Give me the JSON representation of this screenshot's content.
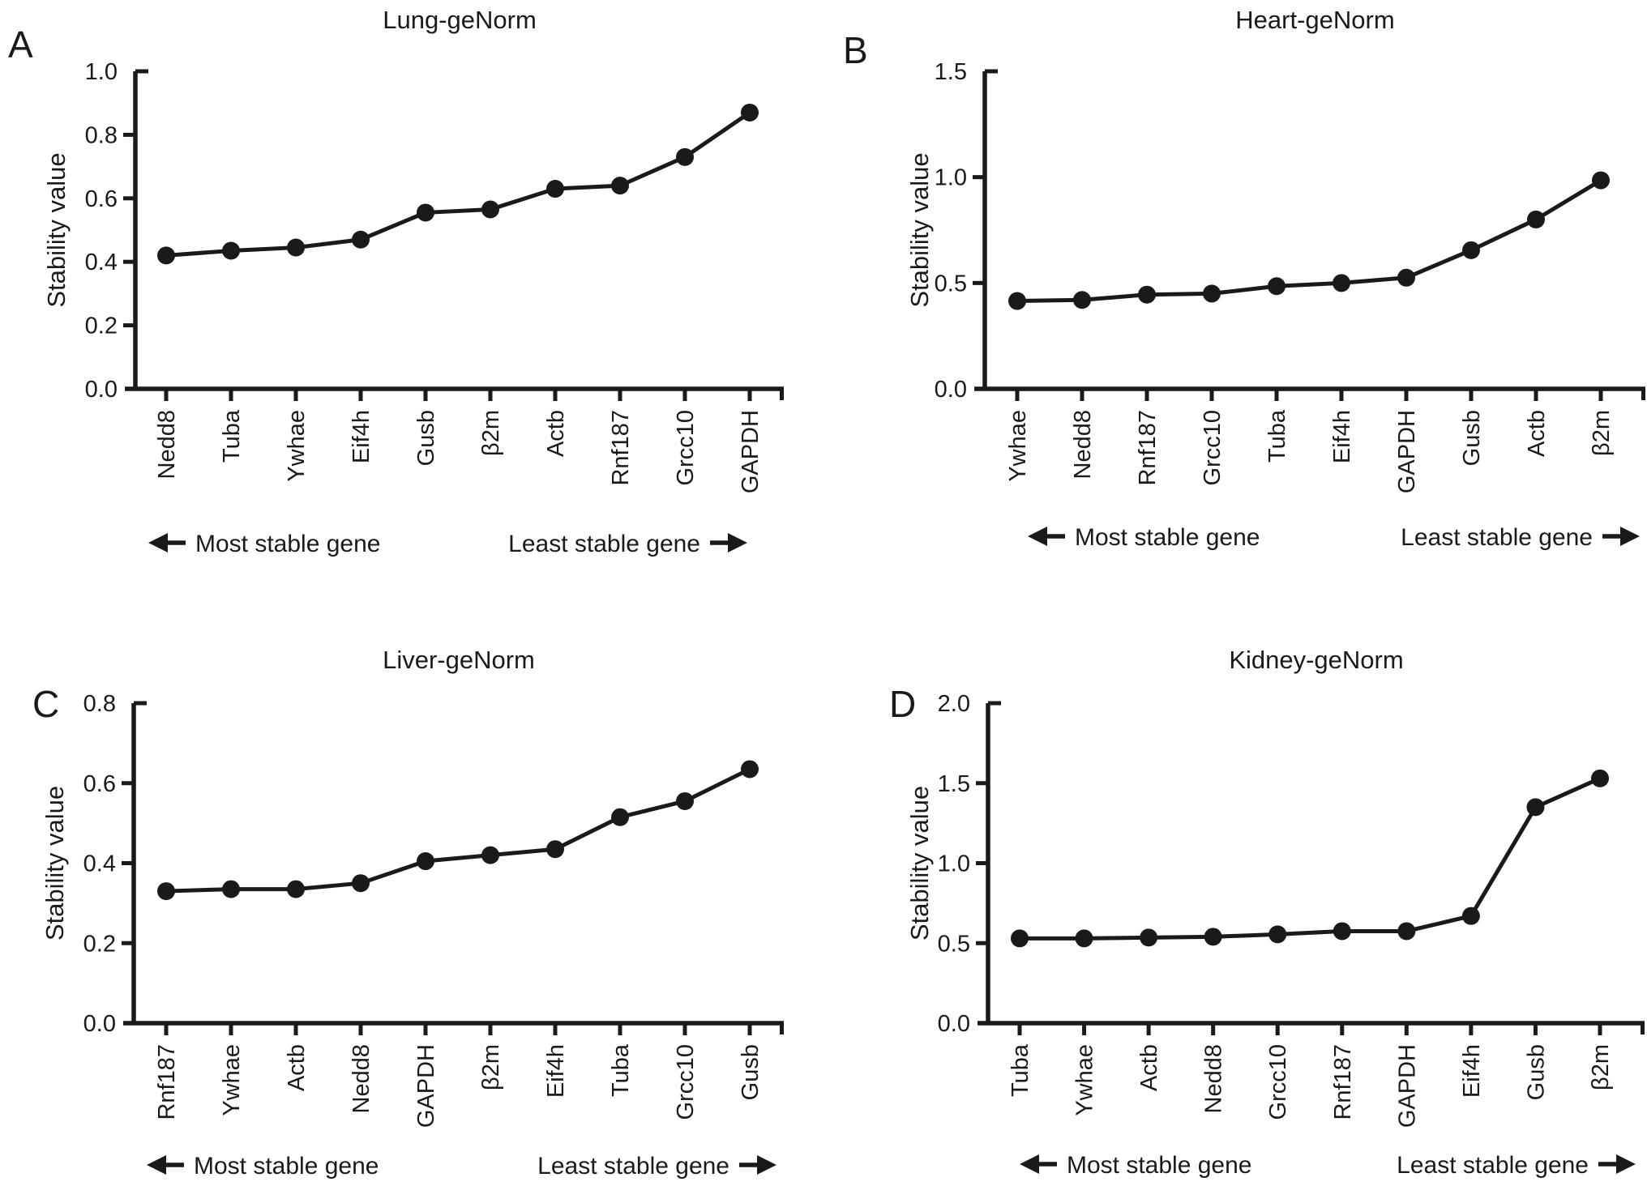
{
  "figure": {
    "background": "#ffffff",
    "ink": "#1a1a1a",
    "description": "geNorm gene expression stability ranking in four tissues"
  },
  "chart_data": [
    {
      "type": "line",
      "panel_letter": "A",
      "title": "Lung-geNorm",
      "ylabel": "Stability value",
      "categories": [
        "Nedd8",
        "Tuba",
        "Ywhae",
        "Eif4h",
        "Gusb",
        "β2m",
        "Actb",
        "Rnf187",
        "Grcc10",
        "GAPDH"
      ],
      "values": [
        0.42,
        0.435,
        0.445,
        0.47,
        0.555,
        0.565,
        0.63,
        0.64,
        0.73,
        0.87
      ],
      "ylim": [
        0,
        1.0
      ],
      "yticks": [
        0,
        0.2,
        0.4,
        0.6,
        0.8,
        1.0
      ],
      "ytick_labels": [
        "0.0",
        "0.2",
        "0.4",
        "0.6",
        "0.8",
        "1.0"
      ],
      "grid": false,
      "legend": false,
      "annotation_left": "Most stable gene",
      "annotation_right": "Least stable gene"
    },
    {
      "type": "line",
      "panel_letter": "B",
      "title": "Heart-geNorm",
      "ylabel": "Stability value",
      "categories": [
        "Ywhae",
        "Nedd8",
        "Rnf187",
        "Grcc10",
        "Tuba",
        "Eif4h",
        "GAPDH",
        "Gusb",
        "Actb",
        "β2m"
      ],
      "values": [
        0.415,
        0.42,
        0.445,
        0.45,
        0.485,
        0.5,
        0.525,
        0.655,
        0.8,
        0.985
      ],
      "ylim": [
        0,
        1.5
      ],
      "yticks": [
        0,
        0.5,
        1.0,
        1.5
      ],
      "ytick_labels": [
        "0.0",
        "0.5",
        "1.0",
        "1.5"
      ],
      "grid": false,
      "legend": false,
      "annotation_left": "Most stable gene",
      "annotation_right": "Least stable gene"
    },
    {
      "type": "line",
      "panel_letter": "C",
      "title": "Liver-geNorm",
      "ylabel": "Stability value",
      "categories": [
        "Rnf187",
        "Ywhae",
        "Actb",
        "Nedd8",
        "GAPDH",
        "β2m",
        "Eif4h",
        "Tuba",
        "Grcc10",
        "Gusb"
      ],
      "values": [
        0.33,
        0.335,
        0.335,
        0.35,
        0.405,
        0.42,
        0.435,
        0.515,
        0.555,
        0.635
      ],
      "ylim": [
        0,
        0.8
      ],
      "yticks": [
        0,
        0.2,
        0.4,
        0.6,
        0.8
      ],
      "ytick_labels": [
        "0.0",
        "0.2",
        "0.4",
        "0.6",
        "0.8"
      ],
      "grid": false,
      "legend": false,
      "annotation_left": "Most stable gene",
      "annotation_right": "Least stable gene"
    },
    {
      "type": "line",
      "panel_letter": "D",
      "title": "Kidney-geNorm",
      "ylabel": "Stability value",
      "categories": [
        "Tuba",
        "Ywhae",
        "Actb",
        "Nedd8",
        "Grcc10",
        "Rnf187",
        "GAPDH",
        "Eif4h",
        "Gusb",
        "β2m"
      ],
      "values": [
        0.53,
        0.53,
        0.535,
        0.54,
        0.555,
        0.575,
        0.575,
        0.67,
        1.35,
        1.53
      ],
      "ylim": [
        0,
        2.0
      ],
      "yticks": [
        0,
        0.5,
        1.0,
        1.5,
        2.0
      ],
      "ytick_labels": [
        "0.0",
        "0.5",
        "1.0",
        "1.5",
        "2.0"
      ],
      "grid": false,
      "legend": false,
      "annotation_left": "Most stable gene",
      "annotation_right": "Least stable gene"
    }
  ]
}
